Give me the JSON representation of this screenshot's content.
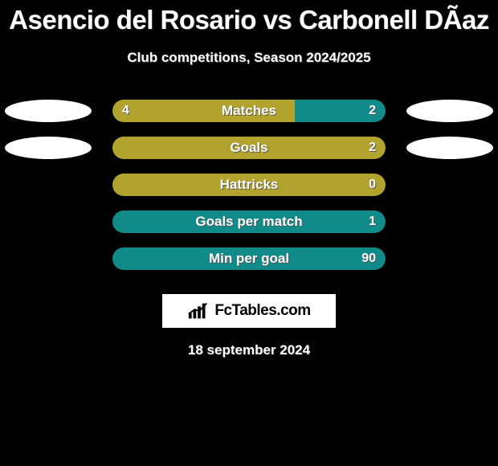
{
  "title": "Asencio del Rosario vs Carbonell DÃ­az",
  "subtitle": "Club competitions, Season 2024/2025",
  "date_text": "18 september 2024",
  "logo_text": "FcTables.com",
  "colors": {
    "background": "#000000",
    "bar_left": "#b2a22e",
    "bar_right_olive": "#b2a22e",
    "bar_right_teal": "#118a8a",
    "oval": "#ffffff",
    "text": "#ffffff"
  },
  "rows": [
    {
      "label": "Matches",
      "left_value": "4",
      "right_value": "2",
      "left_total": 4,
      "right_total": 2,
      "left_color": "#b2a22e",
      "right_color": "#118a8a",
      "show_left_oval": true,
      "show_right_oval": true
    },
    {
      "label": "Goals",
      "left_value": "",
      "right_value": "2",
      "left_total": 0,
      "right_total": 2,
      "left_color": "#b2a22e",
      "right_color": "#b2a22e",
      "show_left_oval": true,
      "show_right_oval": true
    },
    {
      "label": "Hattricks",
      "left_value": "",
      "right_value": "0",
      "left_total": 0,
      "right_total": 0,
      "left_color": "#b2a22e",
      "right_color": "#b2a22e",
      "show_left_oval": false,
      "show_right_oval": false
    },
    {
      "label": "Goals per match",
      "left_value": "",
      "right_value": "1",
      "left_total": 0,
      "right_total": 1,
      "left_color": "#b2a22e",
      "right_color": "#118a8a",
      "show_left_oval": false,
      "show_right_oval": false
    },
    {
      "label": "Min per goal",
      "left_value": "",
      "right_value": "90",
      "left_total": 0,
      "right_total": 90,
      "left_color": "#b2a22e",
      "right_color": "#118a8a",
      "show_left_oval": false,
      "show_right_oval": false
    }
  ]
}
